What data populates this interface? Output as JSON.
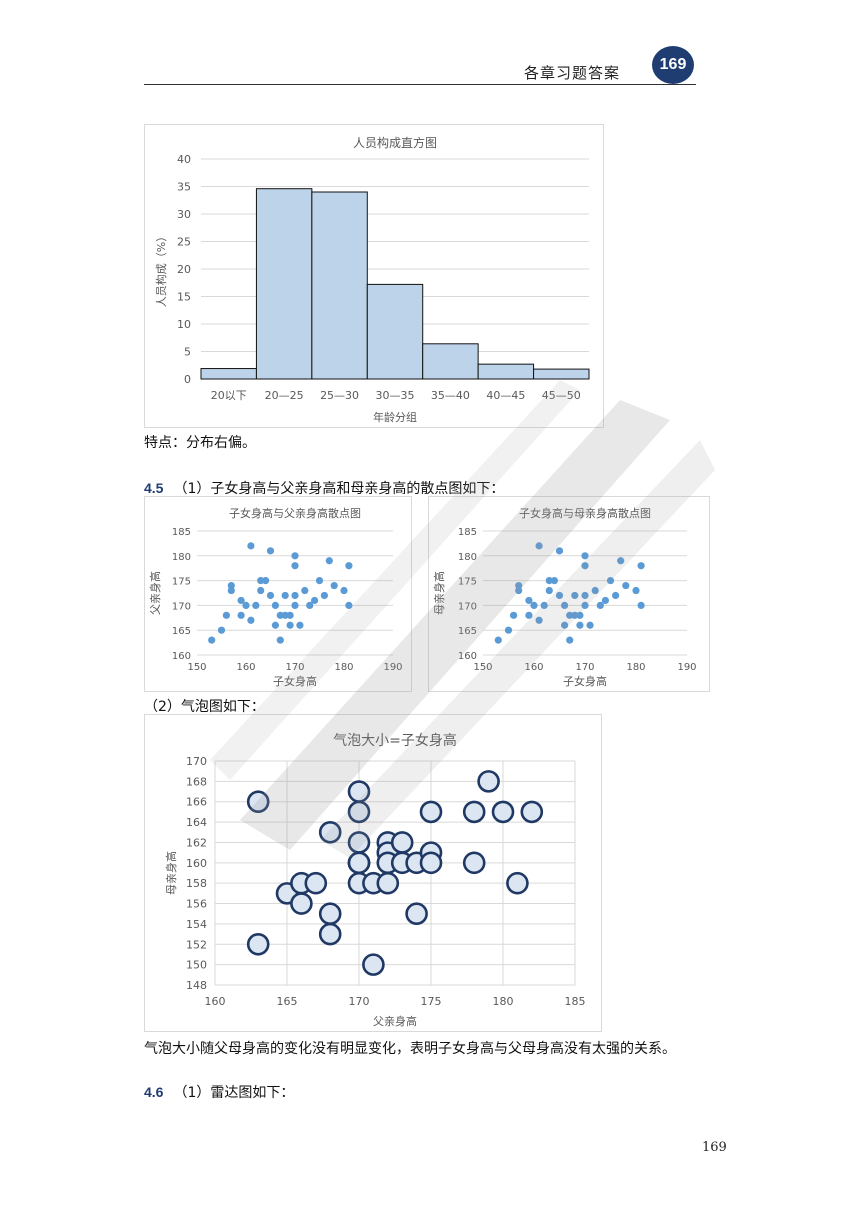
{
  "header": {
    "title": "各章习题答案",
    "page_badge": "169"
  },
  "histogram": {
    "chart_data": {
      "type": "bar",
      "title": "人员构成直方图",
      "xlabel": "年龄分组",
      "ylabel": "人员构成（%）",
      "categories": [
        "20以下",
        "20—25",
        "25—30",
        "30—35",
        "35—40",
        "40—45",
        "45—50"
      ],
      "values": [
        1.9,
        34.6,
        34.0,
        17.2,
        6.4,
        2.7,
        1.8
      ],
      "ylim": [
        0,
        40
      ],
      "yticks": [
        0,
        5,
        10,
        15,
        20,
        25,
        30,
        35,
        40
      ],
      "grid": true,
      "colors": {
        "fill": "#bdd3ea",
        "edge": "#111111"
      }
    }
  },
  "text_feature": "特点：分布右偏。",
  "section_45": {
    "number": "4.5",
    "text": "（1）子女身高与父亲身高和母亲身高的散点图如下："
  },
  "scatter_father": {
    "chart_data": {
      "type": "scatter",
      "title": "子女身高与父亲身高散点图",
      "xlabel": "子女身高",
      "ylabel": "父亲身高",
      "xlim": [
        150,
        190
      ],
      "ylim": [
        160,
        185
      ],
      "xticks": [
        150,
        160,
        170,
        180,
        190
      ],
      "yticks": [
        160,
        165,
        170,
        175,
        180,
        185
      ],
      "color": "#5b9bd5",
      "x": [
        153,
        155,
        156,
        157,
        157,
        159,
        159,
        160,
        161,
        161,
        162,
        163,
        163,
        164,
        165,
        165,
        166,
        166,
        167,
        167,
        168,
        168,
        169,
        169,
        170,
        170,
        170,
        170,
        171,
        172,
        173,
        174,
        175,
        176,
        177,
        178,
        180,
        181,
        181
      ],
      "y": [
        163,
        165,
        168,
        174,
        173,
        168,
        171,
        170,
        182,
        167,
        170,
        173,
        175,
        175,
        172,
        181,
        166,
        170,
        163,
        168,
        172,
        168,
        166,
        168,
        180,
        170,
        172,
        178,
        166,
        173,
        170,
        171,
        175,
        172,
        179,
        174,
        173,
        178,
        170
      ]
    }
  },
  "scatter_mother": {
    "chart_data": {
      "type": "scatter",
      "title": "子女身高与母亲身高散点图",
      "xlabel": "子女身高",
      "ylabel": "母亲身高",
      "xlim": [
        150,
        190
      ],
      "ylim": [
        160,
        185
      ],
      "xticks": [
        150,
        160,
        170,
        180,
        190
      ],
      "yticks": [
        160,
        165,
        170,
        175,
        180,
        185
      ],
      "color": "#5b9bd5",
      "x": [
        153,
        155,
        156,
        157,
        157,
        159,
        159,
        160,
        161,
        161,
        162,
        163,
        163,
        164,
        165,
        165,
        166,
        166,
        167,
        167,
        168,
        168,
        169,
        169,
        170,
        170,
        170,
        170,
        171,
        172,
        173,
        174,
        175,
        176,
        177,
        178,
        180,
        181,
        181
      ],
      "y": [
        163,
        165,
        168,
        174,
        173,
        168,
        171,
        170,
        182,
        167,
        170,
        173,
        175,
        175,
        172,
        181,
        166,
        170,
        163,
        168,
        172,
        168,
        166,
        168,
        180,
        170,
        172,
        178,
        166,
        173,
        170,
        171,
        175,
        172,
        179,
        174,
        173,
        178,
        170
      ]
    }
  },
  "sub_2": "（2）气泡图如下：",
  "bubble": {
    "chart_data": {
      "type": "scatter",
      "subtype": "bubble",
      "title": "气泡大小=子女身高",
      "xlabel": "父亲身高",
      "ylabel": "母亲身高",
      "xlim": [
        160,
        185
      ],
      "ylim": [
        148,
        170
      ],
      "xticks": [
        160,
        165,
        170,
        175,
        180,
        185
      ],
      "yticks": [
        148,
        150,
        152,
        154,
        156,
        158,
        160,
        162,
        164,
        166,
        168,
        170
      ],
      "colors": {
        "fill": "#dce6f2",
        "edge": "#1f3864"
      },
      "x": [
        163,
        163,
        165,
        166,
        166,
        167,
        168,
        168,
        168,
        170,
        170,
        170,
        170,
        170,
        170,
        170,
        171,
        171,
        172,
        172,
        172,
        172,
        173,
        173,
        174,
        174,
        175,
        175,
        175,
        178,
        178,
        179,
        180,
        181,
        182
      ],
      "y": [
        166,
        152,
        157,
        158,
        156,
        158,
        163,
        155,
        153,
        167,
        165,
        162,
        160,
        160,
        158,
        160,
        158,
        150,
        162,
        161,
        160,
        158,
        162,
        160,
        160,
        155,
        165,
        161,
        160,
        165,
        160,
        168,
        165,
        158,
        165
      ]
    }
  },
  "text_conclusion": "气泡大小随父母身高的变化没有明显变化，表明子女身高与父母身高没有太强的关系。",
  "section_46": {
    "number": "4.6",
    "text": "（1）雷达图如下："
  },
  "footer": {
    "page_number": "169"
  }
}
